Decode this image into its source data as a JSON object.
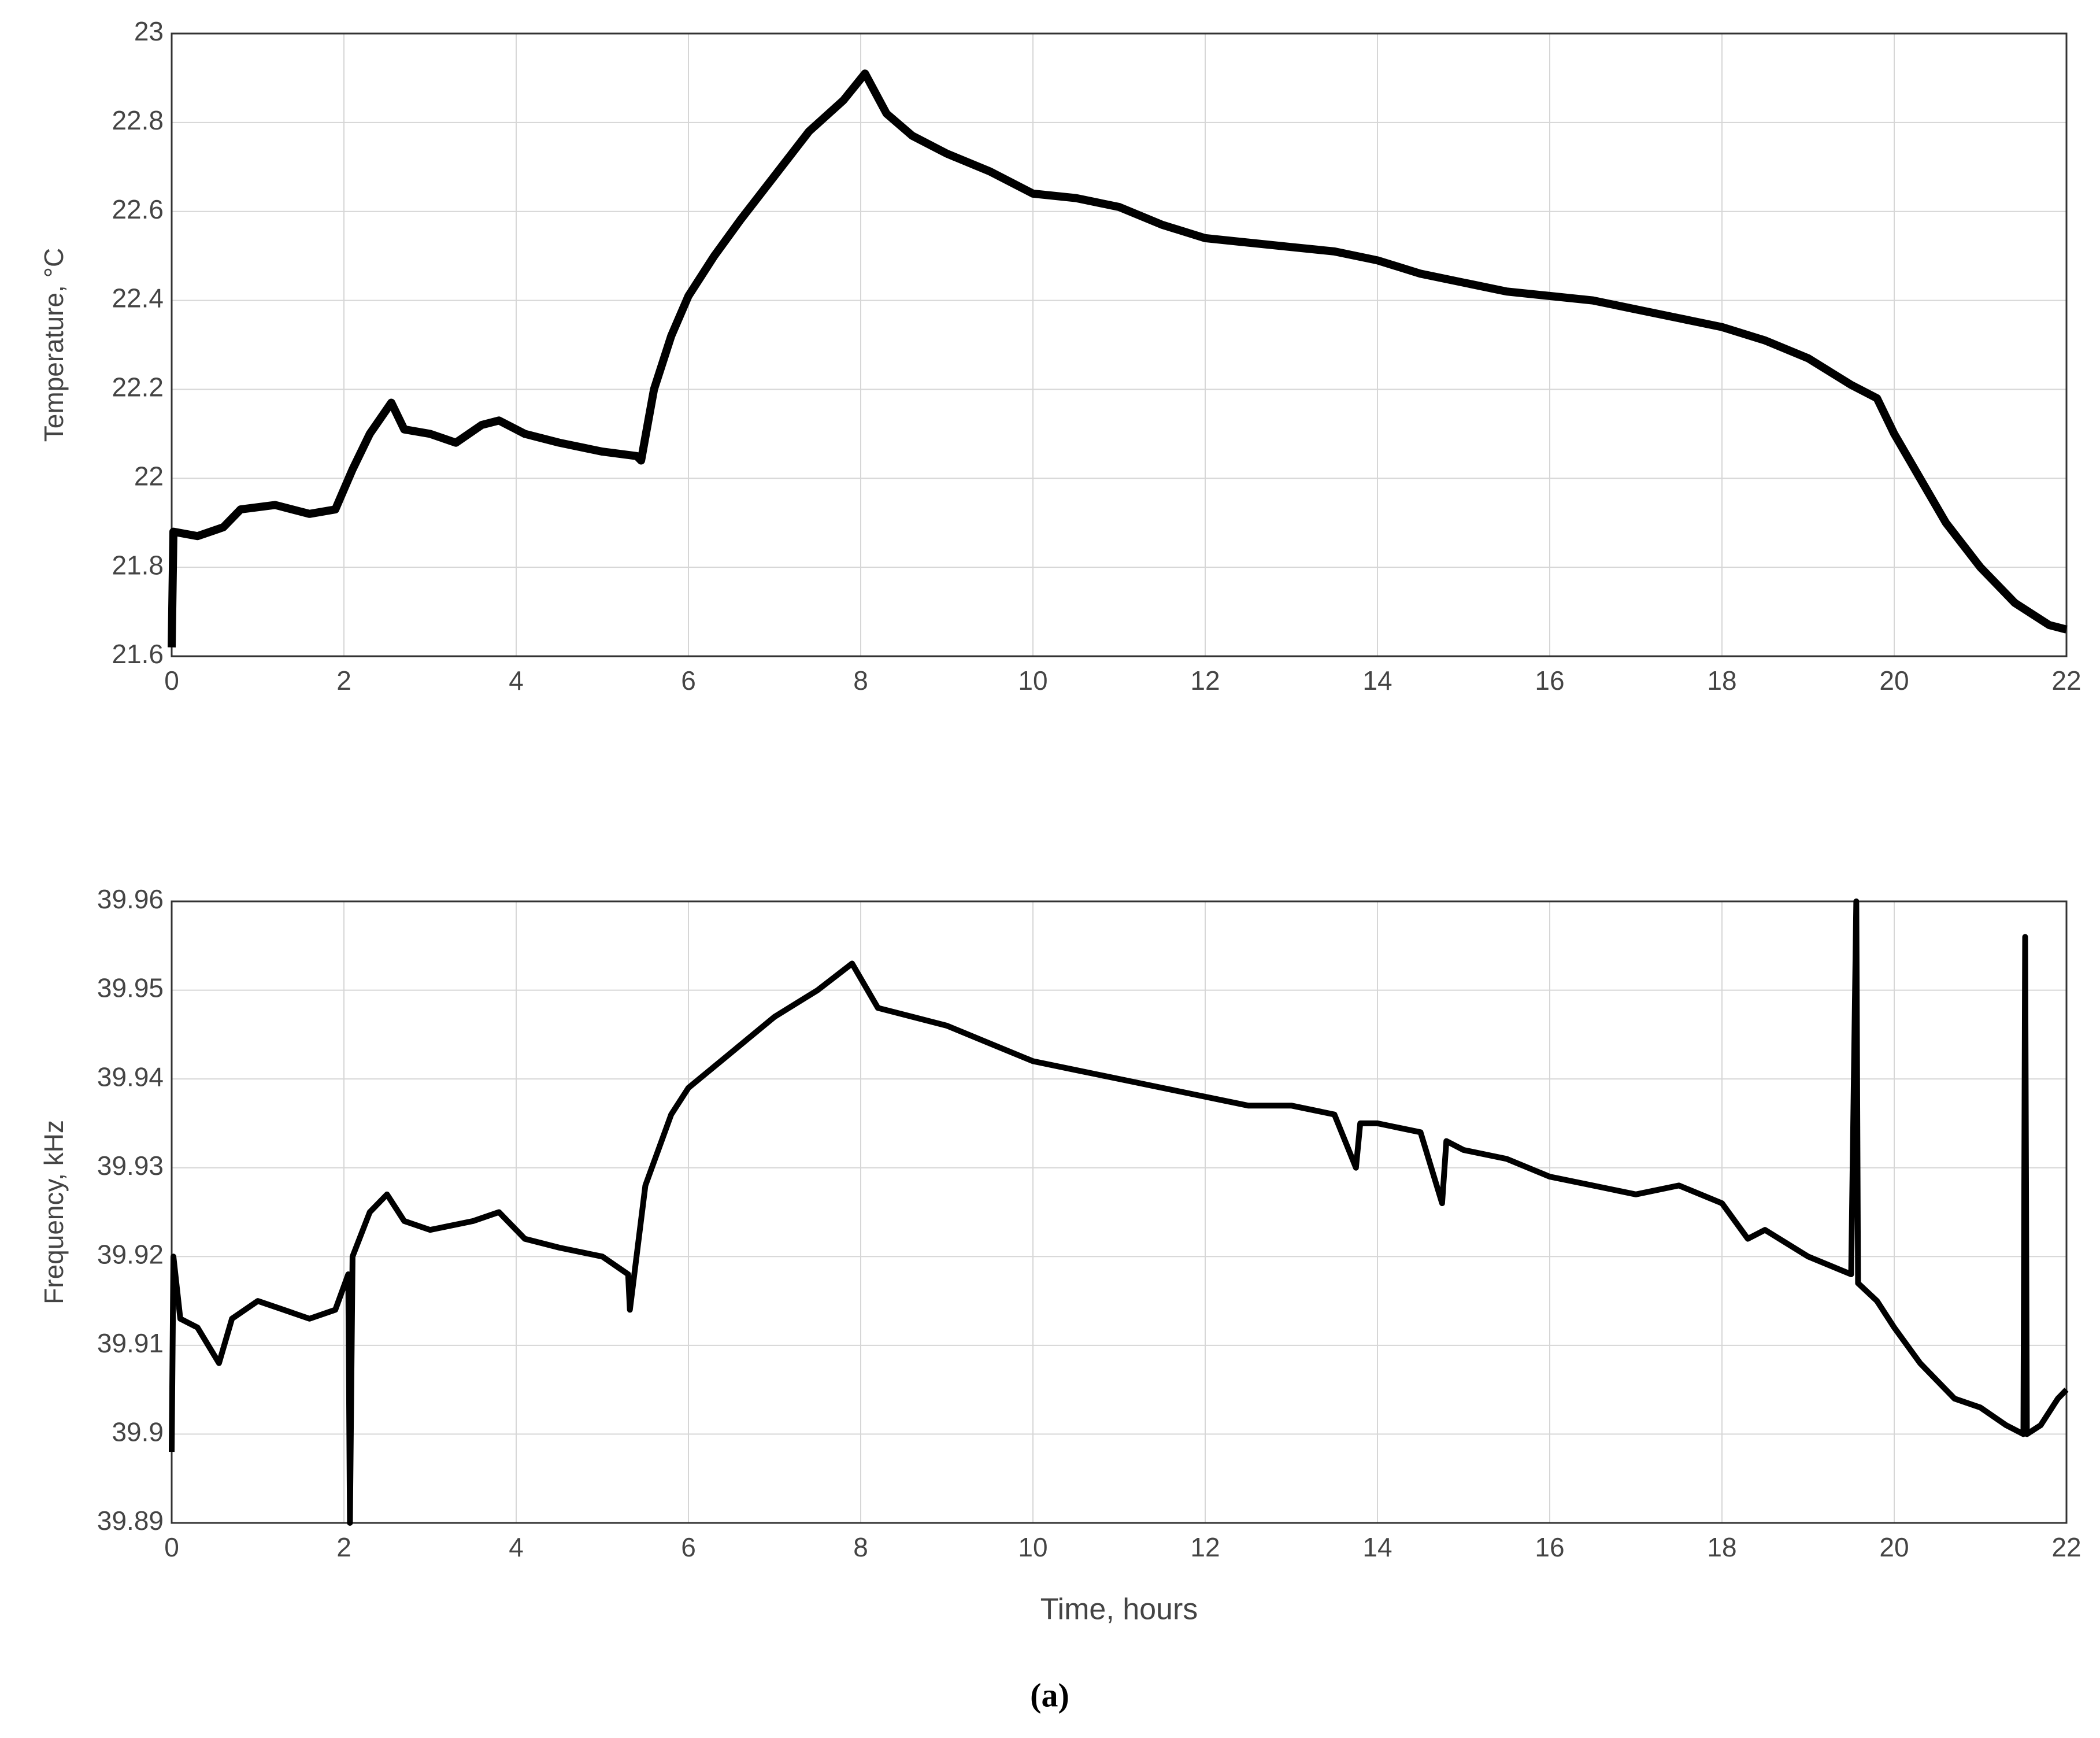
{
  "chart_data": [
    {
      "type": "line",
      "ylabel": "Temperature,  °C",
      "xlim": [
        0,
        22
      ],
      "xticks": [
        0,
        2,
        4,
        6,
        8,
        10,
        12,
        14,
        16,
        18,
        20,
        22
      ],
      "ylim": [
        21.6,
        23
      ],
      "yticks": [
        21.6,
        21.8,
        22,
        22.2,
        22.4,
        22.6,
        22.8,
        23
      ],
      "grid": true,
      "series": [
        {
          "color": "#000000",
          "x": [
            0,
            0.02,
            0.3,
            0.6,
            0.8,
            1.2,
            1.6,
            1.9,
            2.1,
            2.3,
            2.55,
            2.7,
            3.0,
            3.3,
            3.6,
            3.8,
            4.1,
            4.5,
            5.0,
            5.4,
            5.45,
            5.6,
            5.8,
            6.0,
            6.3,
            6.6,
            7.0,
            7.4,
            7.8,
            8.05,
            8.3,
            8.6,
            9.0,
            9.5,
            10,
            10.5,
            11,
            11.5,
            12,
            12.5,
            13,
            13.5,
            14,
            14.5,
            15,
            15.5,
            16,
            16.5,
            17,
            17.5,
            18,
            18.5,
            19,
            19.5,
            19.8,
            20.0,
            20.3,
            20.6,
            21.0,
            21.4,
            21.8,
            22
          ],
          "values": [
            21.62,
            21.88,
            21.87,
            21.89,
            21.93,
            21.94,
            21.92,
            21.93,
            22.02,
            22.1,
            22.17,
            22.11,
            22.1,
            22.08,
            22.12,
            22.13,
            22.1,
            22.08,
            22.06,
            22.05,
            22.04,
            22.2,
            22.32,
            22.41,
            22.5,
            22.58,
            22.68,
            22.78,
            22.85,
            22.91,
            22.82,
            22.77,
            22.73,
            22.69,
            22.64,
            22.63,
            22.61,
            22.57,
            22.54,
            22.53,
            22.52,
            22.51,
            22.49,
            22.46,
            22.44,
            22.42,
            22.41,
            22.4,
            22.38,
            22.36,
            22.34,
            22.31,
            22.27,
            22.21,
            22.18,
            22.1,
            22.0,
            21.9,
            21.8,
            21.72,
            21.67,
            21.66
          ]
        }
      ]
    },
    {
      "type": "line",
      "xlabel": "Time, hours",
      "ylabel": "Frequency, kHz",
      "xlim": [
        0,
        22
      ],
      "xticks": [
        0,
        2,
        4,
        6,
        8,
        10,
        12,
        14,
        16,
        18,
        20,
        22
      ],
      "ylim": [
        39.89,
        39.96
      ],
      "yticks": [
        39.89,
        39.9,
        39.91,
        39.92,
        39.93,
        39.94,
        39.95,
        39.96
      ],
      "grid": true,
      "series": [
        {
          "color": "#000000",
          "x": [
            0,
            0.02,
            0.1,
            0.3,
            0.55,
            0.7,
            1.0,
            1.3,
            1.6,
            1.9,
            2.05,
            2.07,
            2.1,
            2.3,
            2.5,
            2.7,
            3.0,
            3.5,
            3.8,
            4.1,
            4.5,
            5.0,
            5.3,
            5.32,
            5.5,
            5.8,
            6.0,
            6.5,
            7.0,
            7.5,
            7.9,
            8.2,
            8.6,
            9.0,
            9.5,
            10,
            10.5,
            11,
            11.5,
            12,
            12.5,
            13,
            13.5,
            13.75,
            13.8,
            14,
            14.5,
            14.75,
            14.8,
            15,
            15.5,
            16,
            16.5,
            17,
            17.5,
            18,
            18.3,
            18.5,
            19,
            19.5,
            19.56,
            19.58,
            19.8,
            20.0,
            20.3,
            20.7,
            21.0,
            21.3,
            21.5,
            21.52,
            21.54,
            21.7,
            21.9,
            22
          ],
          "values": [
            39.898,
            39.92,
            39.913,
            39.912,
            39.908,
            39.913,
            39.915,
            39.914,
            39.913,
            39.914,
            39.918,
            39.89,
            39.92,
            39.925,
            39.927,
            39.924,
            39.923,
            39.924,
            39.925,
            39.922,
            39.921,
            39.92,
            39.918,
            39.914,
            39.928,
            39.936,
            39.939,
            39.943,
            39.947,
            39.95,
            39.953,
            39.948,
            39.947,
            39.946,
            39.944,
            39.942,
            39.941,
            39.94,
            39.939,
            39.938,
            39.937,
            39.937,
            39.936,
            39.93,
            39.935,
            39.935,
            39.934,
            39.926,
            39.933,
            39.932,
            39.931,
            39.929,
            39.928,
            39.927,
            39.928,
            39.926,
            39.922,
            39.923,
            39.92,
            39.918,
            39.96,
            39.917,
            39.915,
            39.912,
            39.908,
            39.904,
            39.903,
            39.901,
            39.9,
            39.956,
            39.9,
            39.901,
            39.904,
            39.905
          ]
        }
      ]
    }
  ],
  "caption": "(a)"
}
